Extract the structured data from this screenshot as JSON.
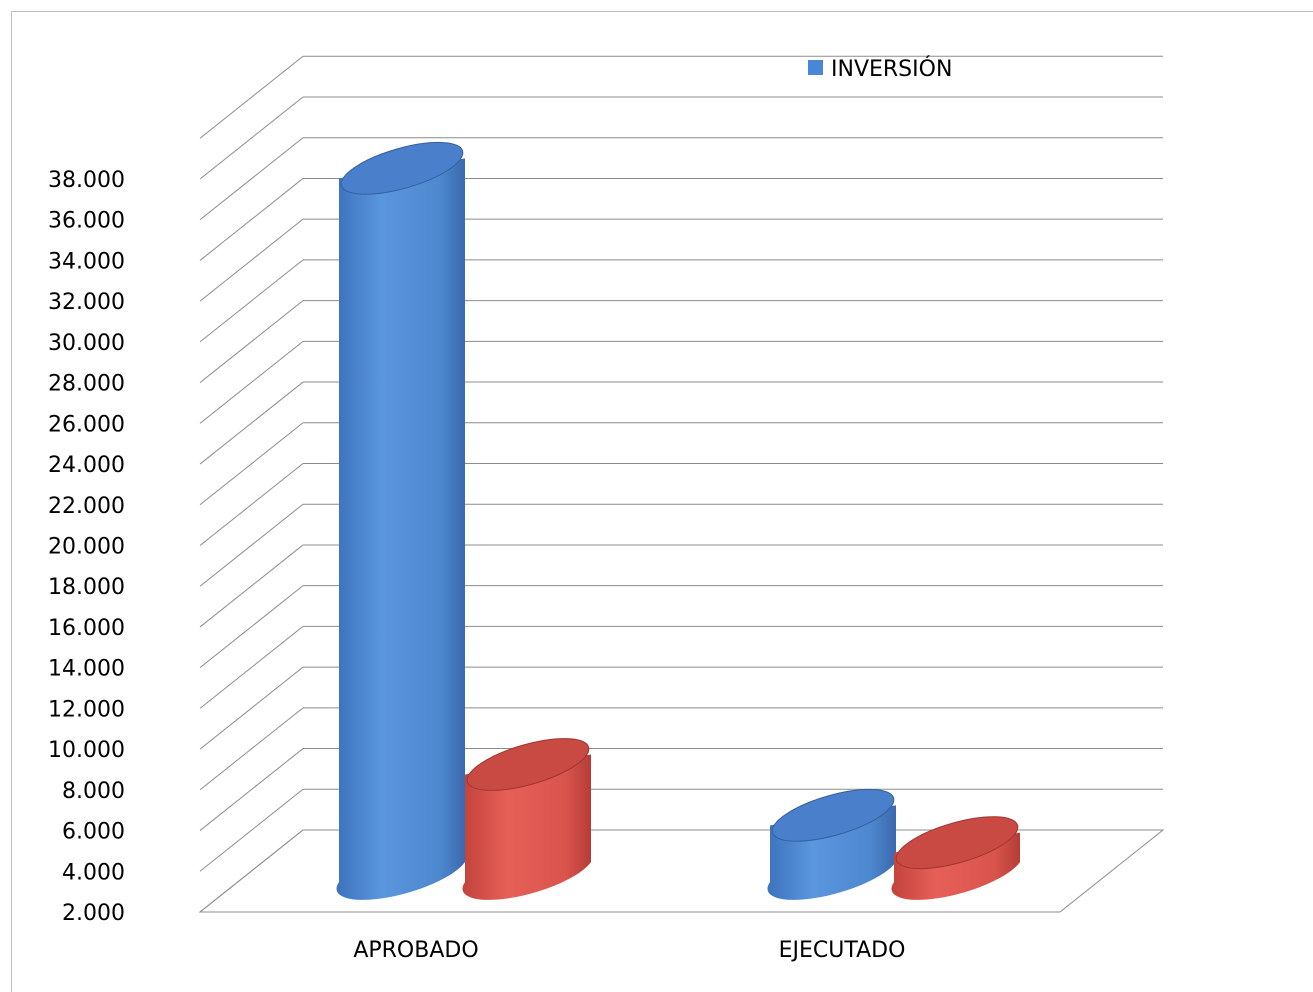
{
  "chart_data": {
    "type": "bar",
    "style": "3d-cylinder",
    "categories": [
      "APROBADO",
      "EJECUTADO"
    ],
    "series": [
      {
        "name": "INVERSIÓN",
        "color": "#4a86d6",
        "values": [
          38000,
          4900
        ]
      },
      {
        "color": "#d9534a",
        "values": [
          7500,
          3500
        ]
      }
    ],
    "yticks": [
      "2.000",
      "4.000",
      "6.000",
      "8.000",
      "10.000",
      "12.000",
      "14.000",
      "16.000",
      "18.000",
      "20.000",
      "22.000",
      "24.000",
      "26.000",
      "28.000",
      "30.000",
      "32.000",
      "34.000",
      "36.000",
      "38.000"
    ],
    "ylim": [
      2000,
      38000
    ],
    "grid": true,
    "legend_position": "top-right"
  }
}
